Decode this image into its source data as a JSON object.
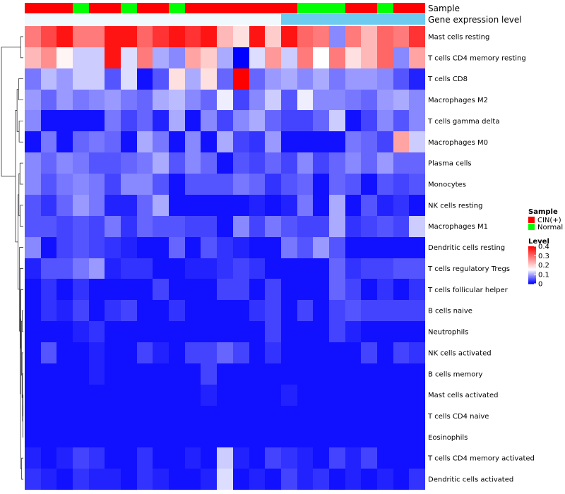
{
  "chart_data": {
    "type": "heatmap",
    "color_scale": {
      "low": "#0000ff",
      "mid": "#ffffff",
      "high": "#ff0000",
      "min": 0,
      "mid_value": 0.15,
      "max": 0.4
    },
    "annotation_rows": [
      "Sample",
      "Gene expression level"
    ],
    "sample_groups": [
      "CIN(+)",
      "CIN(+)",
      "CIN(+)",
      "Normal",
      "CIN(+)",
      "CIN(+)",
      "Normal",
      "CIN(+)",
      "CIN(+)",
      "Normal",
      "CIN(+)",
      "CIN(+)",
      "CIN(+)",
      "CIN(+)",
      "CIN(+)",
      "CIN(+)",
      "CIN(+)",
      "Normal",
      "Normal",
      "Normal",
      "CIN(+)",
      "CIN(+)",
      "Normal",
      "CIN(+)",
      "CIN(+)"
    ],
    "gene_expression_level": [
      "Low",
      "Low",
      "Low",
      "Low",
      "Low",
      "Low",
      "Low",
      "Low",
      "Low",
      "Low",
      "Low",
      "Low",
      "Low",
      "Low",
      "Low",
      "Low",
      "High",
      "High",
      "High",
      "High",
      "High",
      "High",
      "High",
      "High",
      "High"
    ],
    "annotation_colors": {
      "Sample": {
        "CIN(+)": "#ff0000",
        "Normal": "#00ff00"
      },
      "Gene expression level": {
        "Low": "#f0f9fd",
        "High": "#6ecbf0"
      }
    },
    "rows": [
      "Mast cells resting",
      "T cells CD4 memory resting",
      "T cells CD8",
      "Macrophages M2",
      "T cells gamma delta",
      "Macrophages M0",
      "Plasma cells",
      "Monocytes",
      "NK cells resting",
      "Macrophages M1",
      "Dendritic cells resting",
      "T cells regulatory  Tregs",
      "T cells follicular helper",
      "B cells naive",
      "Neutrophils",
      "NK cells activated",
      "B cells memory",
      "Mast cells activated",
      "T cells CD4 naive",
      "Eosinophils",
      "T cells CD4 memory activated",
      "Dendritic cells activated"
    ],
    "values": [
      [
        0.28,
        0.33,
        0.38,
        0.28,
        0.28,
        0.38,
        0.38,
        0.3,
        0.35,
        0.38,
        0.35,
        0.38,
        0.22,
        0.18,
        0.38,
        0.2,
        0.38,
        0.3,
        0.28,
        0.08,
        0.28,
        0.22,
        0.3,
        0.28,
        0.35
      ],
      [
        0.22,
        0.26,
        0.16,
        0.12,
        0.12,
        0.38,
        0.13,
        0.28,
        0.1,
        0.08,
        0.24,
        0.2,
        0.1,
        0.0,
        0.13,
        0.25,
        0.12,
        0.28,
        0.15,
        0.28,
        0.18,
        0.22,
        0.3,
        0.08,
        0.24
      ],
      [
        0.07,
        0.11,
        0.09,
        0.12,
        0.12,
        0.05,
        0.13,
        0.01,
        0.05,
        0.18,
        0.1,
        0.18,
        0.06,
        0.4,
        0.06,
        0.09,
        0.1,
        0.08,
        0.1,
        0.07,
        0.09,
        0.09,
        0.08,
        0.05,
        0.02
      ],
      [
        0.09,
        0.06,
        0.09,
        0.07,
        0.08,
        0.09,
        0.07,
        0.06,
        0.1,
        0.11,
        0.08,
        0.06,
        0.14,
        0.04,
        0.08,
        0.12,
        0.05,
        0.14,
        0.08,
        0.08,
        0.07,
        0.06,
        0.09,
        0.1,
        0.08
      ],
      [
        0.08,
        0.01,
        0.01,
        0.01,
        0.01,
        0.07,
        0.04,
        0.06,
        0.02,
        0.1,
        0.01,
        0.08,
        0.04,
        0.08,
        0.1,
        0.06,
        0.04,
        0.04,
        0.06,
        0.12,
        0.01,
        0.04,
        0.08,
        0.05,
        0.08
      ],
      [
        0.01,
        0.07,
        0.01,
        0.06,
        0.07,
        0.06,
        0.01,
        0.1,
        0.07,
        0.01,
        0.08,
        0.01,
        0.1,
        0.04,
        0.03,
        0.09,
        0.01,
        0.01,
        0.01,
        0.01,
        0.07,
        0.06,
        0.04,
        0.24,
        0.12
      ],
      [
        0.08,
        0.06,
        0.08,
        0.07,
        0.05,
        0.05,
        0.06,
        0.07,
        0.1,
        0.05,
        0.08,
        0.06,
        0.01,
        0.05,
        0.04,
        0.06,
        0.04,
        0.08,
        0.04,
        0.06,
        0.08,
        0.06,
        0.09,
        0.06,
        0.06
      ],
      [
        0.08,
        0.05,
        0.07,
        0.08,
        0.07,
        0.04,
        0.08,
        0.08,
        0.05,
        0.01,
        0.05,
        0.05,
        0.05,
        0.07,
        0.06,
        0.03,
        0.05,
        0.06,
        0.01,
        0.06,
        0.05,
        0.01,
        0.05,
        0.04,
        0.05
      ],
      [
        0.05,
        0.03,
        0.06,
        0.09,
        0.07,
        0.02,
        0.02,
        0.06,
        0.1,
        0.01,
        0.01,
        0.01,
        0.01,
        0.01,
        0.02,
        0.01,
        0.02,
        0.07,
        0.01,
        0.1,
        0.01,
        0.05,
        0.02,
        0.03,
        0.01
      ],
      [
        0.05,
        0.05,
        0.04,
        0.05,
        0.04,
        0.07,
        0.03,
        0.06,
        0.05,
        0.05,
        0.04,
        0.04,
        0.01,
        0.08,
        0.04,
        0.07,
        0.05,
        0.04,
        0.04,
        0.1,
        0.03,
        0.04,
        0.05,
        0.04,
        0.12
      ],
      [
        0.08,
        0.01,
        0.04,
        0.05,
        0.04,
        0.03,
        0.02,
        0.01,
        0.01,
        0.06,
        0.01,
        0.05,
        0.03,
        0.02,
        0.01,
        0.01,
        0.07,
        0.05,
        0.09,
        0.05,
        0.01,
        0.01,
        0.01,
        0.01,
        0.01
      ],
      [
        0.02,
        0.05,
        0.05,
        0.07,
        0.09,
        0.02,
        0.03,
        0.03,
        0.01,
        0.01,
        0.02,
        0.02,
        0.03,
        0.04,
        0.03,
        0.01,
        0.01,
        0.01,
        0.01,
        0.06,
        0.03,
        0.04,
        0.04,
        0.05,
        0.05
      ],
      [
        0.01,
        0.03,
        0.01,
        0.03,
        0.01,
        0.01,
        0.01,
        0.01,
        0.04,
        0.01,
        0.01,
        0.01,
        0.04,
        0.04,
        0.01,
        0.04,
        0.01,
        0.01,
        0.01,
        0.06,
        0.04,
        0.01,
        0.03,
        0.01,
        0.03
      ],
      [
        0.01,
        0.03,
        0.02,
        0.04,
        0.01,
        0.03,
        0.04,
        0.01,
        0.01,
        0.03,
        0.01,
        0.01,
        0.01,
        0.01,
        0.03,
        0.04,
        0.01,
        0.04,
        0.01,
        0.04,
        0.05,
        0.04,
        0.04,
        0.04,
        0.04
      ],
      [
        0.01,
        0.01,
        0.01,
        0.02,
        0.03,
        0.01,
        0.01,
        0.01,
        0.01,
        0.01,
        0.01,
        0.01,
        0.01,
        0.01,
        0.01,
        0.04,
        0.01,
        0.01,
        0.01,
        0.04,
        0.02,
        0.01,
        0.01,
        0.01,
        0.01
      ],
      [
        0.01,
        0.05,
        0.01,
        0.01,
        0.02,
        0.01,
        0.01,
        0.04,
        0.02,
        0.01,
        0.04,
        0.04,
        0.06,
        0.04,
        0.01,
        0.03,
        0.01,
        0.01,
        0.01,
        0.01,
        0.01,
        0.04,
        0.01,
        0.04,
        0.03
      ],
      [
        0.01,
        0.01,
        0.01,
        0.01,
        0.02,
        0.01,
        0.01,
        0.01,
        0.01,
        0.01,
        0.01,
        0.04,
        0.01,
        0.01,
        0.01,
        0.01,
        0.01,
        0.01,
        0.01,
        0.01,
        0.01,
        0.01,
        0.01,
        0.01,
        0.01
      ],
      [
        0.01,
        0.01,
        0.01,
        0.01,
        0.01,
        0.01,
        0.01,
        0.01,
        0.01,
        0.01,
        0.01,
        0.02,
        0.01,
        0.01,
        0.01,
        0.01,
        0.02,
        0.01,
        0.01,
        0.01,
        0.01,
        0.01,
        0.01,
        0.01,
        0.01
      ],
      [
        0.01,
        0.01,
        0.01,
        0.01,
        0.01,
        0.01,
        0.01,
        0.01,
        0.01,
        0.01,
        0.01,
        0.01,
        0.01,
        0.01,
        0.01,
        0.01,
        0.01,
        0.01,
        0.01,
        0.01,
        0.01,
        0.01,
        0.01,
        0.01,
        0.01
      ],
      [
        0.01,
        0.01,
        0.01,
        0.01,
        0.01,
        0.01,
        0.01,
        0.01,
        0.01,
        0.01,
        0.01,
        0.01,
        0.01,
        0.01,
        0.01,
        0.01,
        0.01,
        0.01,
        0.01,
        0.01,
        0.01,
        0.01,
        0.01,
        0.01,
        0.01
      ],
      [
        0.02,
        0.01,
        0.02,
        0.04,
        0.03,
        0.01,
        0.01,
        0.03,
        0.01,
        0.01,
        0.02,
        0.01,
        0.12,
        0.02,
        0.01,
        0.04,
        0.03,
        0.02,
        0.01,
        0.04,
        0.02,
        0.04,
        0.01,
        0.01,
        0.01
      ],
      [
        0.03,
        0.02,
        0.01,
        0.03,
        0.02,
        0.02,
        0.01,
        0.03,
        0.02,
        0.01,
        0.01,
        0.02,
        0.13,
        0.01,
        0.02,
        0.01,
        0.04,
        0.02,
        0.03,
        0.01,
        0.02,
        0.01,
        0.02,
        0.01,
        0.03
      ]
    ],
    "dendrogram": [
      [
        [
          4,
          1,
          0
        ],
        [
          12,
          0,
          1
        ]
      ],
      [
        [
          9,
          10,
          11
        ],
        [
          6,
          2,
          2
        ]
      ],
      [
        [
          10,
          11,
          12
        ],
        [
          5,
          3,
          3
        ]
      ],
      [
        [
          11,
          12,
          13
        ],
        [
          4,
          4,
          4
        ]
      ],
      [
        [
          13,
          14,
          15
        ],
        [
          3,
          5,
          5
        ]
      ],
      [
        [
          19,
          20,
          21
        ],
        [
          6,
          6,
          6
        ]
      ],
      [
        [
          15,
          16,
          17
        ],
        [
          2,
          7,
          7
        ]
      ],
      [
        [
          17,
          18,
          19
        ],
        [
          1,
          8,
          8
        ]
      ],
      [
        [
          18,
          19,
          20
        ],
        [
          2,
          9,
          9
        ]
      ],
      [
        [
          16,
          17,
          18
        ],
        [
          3,
          10,
          10
        ]
      ],
      [
        [
          18,
          19,
          20
        ],
        [
          4,
          11,
          11
        ]
      ],
      [
        [
          17,
          18,
          19
        ],
        [
          5,
          12,
          12
        ]
      ],
      [
        [
          14,
          15,
          16
        ],
        [
          6,
          13,
          13
        ]
      ],
      [
        [
          17,
          18,
          20
        ],
        [
          7,
          14,
          14
        ]
      ],
      [
        [
          16,
          17,
          18
        ],
        [
          8,
          15,
          15
        ]
      ],
      [
        [
          15,
          16,
          17
        ],
        [
          9,
          16,
          16
        ]
      ],
      [
        [
          14,
          15,
          16
        ],
        [
          10,
          17,
          17
        ]
      ],
      [
        [
          13,
          14,
          15
        ],
        [
          11,
          18,
          18
        ]
      ],
      [
        [
          12,
          13,
          14
        ],
        [
          12,
          19,
          19
        ]
      ],
      [
        [
          11,
          12,
          13
        ],
        [
          13,
          20,
          20
        ]
      ],
      [
        [
          11,
          12,
          13
        ],
        [
          14,
          21,
          21
        ]
      ]
    ],
    "legend": {
      "sample_title": "Sample",
      "sample_items": [
        {
          "label": "CIN(+)",
          "color": "#ff0000"
        },
        {
          "label": "Normal",
          "color": "#00ff00"
        }
      ],
      "level_title": "Level",
      "level_ticks": [
        "0.4",
        "0.3",
        "0.2",
        "0.1",
        "0"
      ],
      "level_tick_values": [
        0.4,
        0.3,
        0.2,
        0.1,
        0
      ]
    }
  }
}
